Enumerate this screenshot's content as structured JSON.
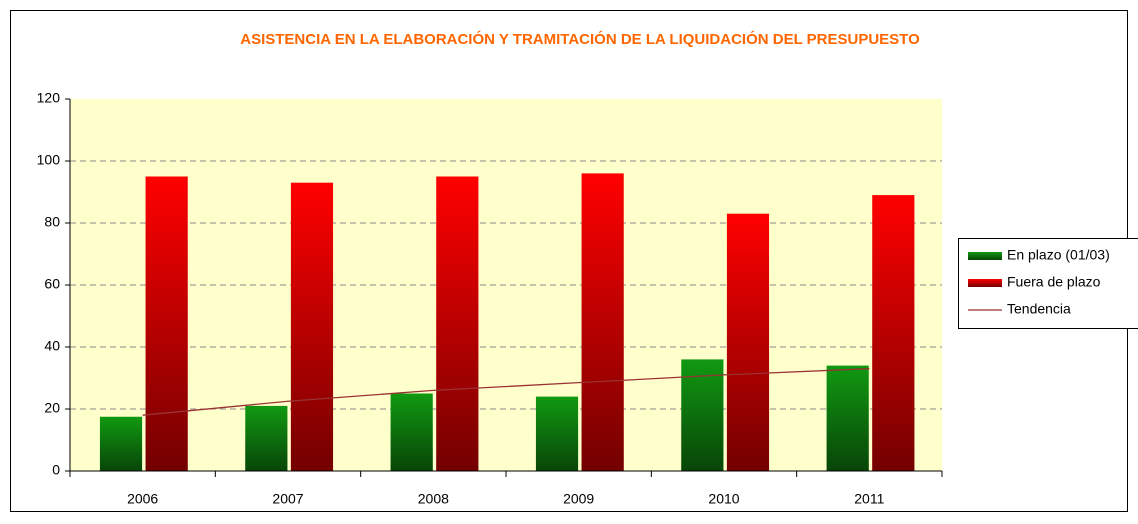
{
  "chart_data": {
    "type": "bar",
    "title": "ASISTENCIA EN LA ELABORACIÓN Y TRAMITACIÓN DE LA LIQUIDACIÓN DEL PRESUPUESTO",
    "categories": [
      "2006",
      "2007",
      "2008",
      "2009",
      "2010",
      "2011"
    ],
    "series": [
      {
        "name": "En plazo (01/03)",
        "color": "#119911",
        "values": [
          17.5,
          21,
          25,
          24,
          36,
          34
        ]
      },
      {
        "name": "Fuera de plazo",
        "color": "#ff0000",
        "values": [
          95,
          93,
          95,
          96,
          83,
          89
        ]
      },
      {
        "name": "Tendencia",
        "type": "line",
        "color": "#993333",
        "values": [
          18,
          22.5,
          26,
          28.5,
          31,
          33
        ]
      }
    ],
    "ylim": [
      0,
      120
    ],
    "yticks": [
      0,
      20,
      40,
      60,
      80,
      100,
      120
    ],
    "grid": true,
    "legend": "right"
  }
}
